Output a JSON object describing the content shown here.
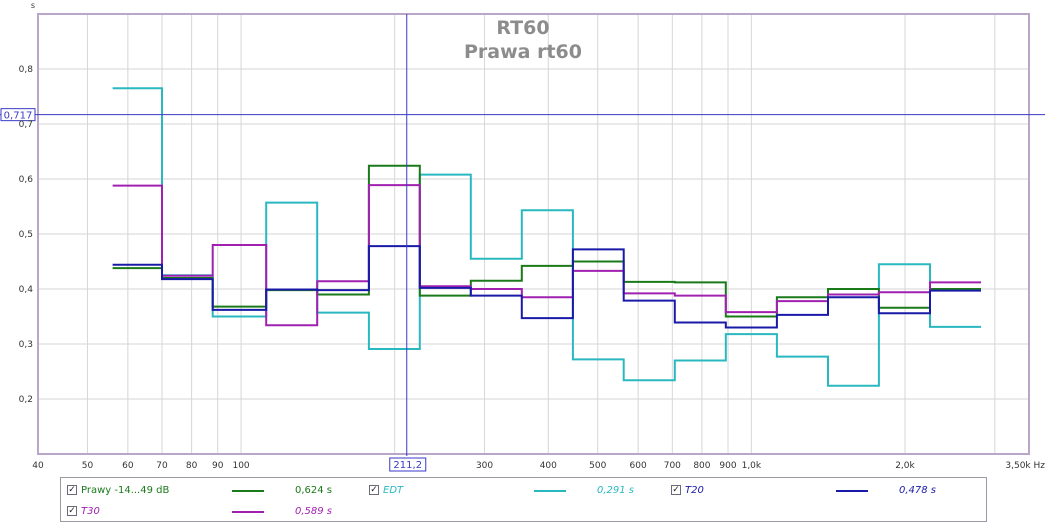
{
  "chart_data": {
    "type": "line",
    "title": "RT60",
    "subtitle": "Prawa rt60",
    "ylabel": "s",
    "xlabel": "Hz",
    "x_scale": "log",
    "xlim": [
      40,
      3500
    ],
    "ylim": [
      0.1,
      0.9
    ],
    "x_ticks": [
      {
        "value": 40,
        "label": "40"
      },
      {
        "value": 50,
        "label": "50"
      },
      {
        "value": 60,
        "label": "60"
      },
      {
        "value": 70,
        "label": "70"
      },
      {
        "value": 80,
        "label": "80"
      },
      {
        "value": 90,
        "label": "90"
      },
      {
        "value": 100,
        "label": "100"
      },
      {
        "value": 300,
        "label": "300"
      },
      {
        "value": 400,
        "label": "400"
      },
      {
        "value": 500,
        "label": "500"
      },
      {
        "value": 600,
        "label": "600"
      },
      {
        "value": 700,
        "label": "700"
      },
      {
        "value": 800,
        "label": "800"
      },
      {
        "value": 900,
        "label": "900"
      },
      {
        "value": 1000,
        "label": "1,0k"
      },
      {
        "value": 2000,
        "label": "2,0k"
      },
      {
        "value": 3500,
        "label": "3,50k Hz"
      }
    ],
    "minor_x_grid": [
      200,
      3000
    ],
    "y_ticks": [
      {
        "value": 0.2,
        "label": "0,2"
      },
      {
        "value": 0.3,
        "label": "0,3"
      },
      {
        "value": 0.4,
        "label": "0,4"
      },
      {
        "value": 0.5,
        "label": "0,5"
      },
      {
        "value": 0.6,
        "label": "0,6"
      },
      {
        "value": 0.7,
        "label": "0,7"
      },
      {
        "value": 0.8,
        "label": "0,8"
      }
    ],
    "band_edges": [
      56,
      70,
      88,
      112,
      141,
      178,
      224,
      282,
      355,
      447,
      562,
      708,
      891,
      1122,
      1413,
      1778,
      2239,
      2818
    ],
    "series": [
      {
        "name": "Prawy -14...49 dB",
        "color": "#1a7a1a",
        "values": [
          0.438,
          0.42,
          0.368,
          0.398,
          0.39,
          0.624,
          0.388,
          0.415,
          0.442,
          0.45,
          0.413,
          0.412,
          0.35,
          0.385,
          0.4,
          0.366,
          0.4
        ]
      },
      {
        "name": "EDT",
        "color": "#2ab8c0",
        "values": [
          0.765,
          0.425,
          0.35,
          0.557,
          0.357,
          0.291,
          0.608,
          0.455,
          0.543,
          0.272,
          0.234,
          0.27,
          0.318,
          0.277,
          0.224,
          0.445,
          0.331
        ]
      },
      {
        "name": "T20",
        "color": "#1a1aa8",
        "values": [
          0.444,
          0.418,
          0.362,
          0.399,
          0.398,
          0.478,
          0.402,
          0.388,
          0.347,
          0.472,
          0.379,
          0.339,
          0.33,
          0.353,
          0.385,
          0.356,
          0.397
        ]
      },
      {
        "name": "T30",
        "color": "#a020b0",
        "values": [
          0.588,
          0.424,
          0.48,
          0.334,
          0.414,
          0.589,
          0.405,
          0.4,
          0.385,
          0.433,
          0.392,
          0.388,
          0.358,
          0.378,
          0.39,
          0.394,
          0.412
        ]
      }
    ],
    "cursor": {
      "x_label": "211,2",
      "x": 211.2,
      "y_label": "0,717",
      "y": 0.717
    }
  },
  "legend": [
    {
      "name": "Prawy -14...49 dB",
      "value": "0,624 s",
      "checked": "✓",
      "color": "#1a7a1a",
      "italic": false
    },
    {
      "name": "EDT",
      "value": "0,291 s",
      "checked": "✓",
      "color": "#2ab8c0",
      "italic": true
    },
    {
      "name": "T20",
      "value": "0,478 s",
      "checked": "✓",
      "color": "#1a1aa8",
      "italic": true
    },
    {
      "name": "T30",
      "value": "0,589 s",
      "checked": "✓",
      "color": "#a020b0",
      "italic": true
    }
  ],
  "colors": {
    "background": "#ffffff",
    "plot_border": "#b9a6c8",
    "grid": "#d6d6d6",
    "cursor": "#3a3ac8",
    "title": "#8c8c8c"
  }
}
